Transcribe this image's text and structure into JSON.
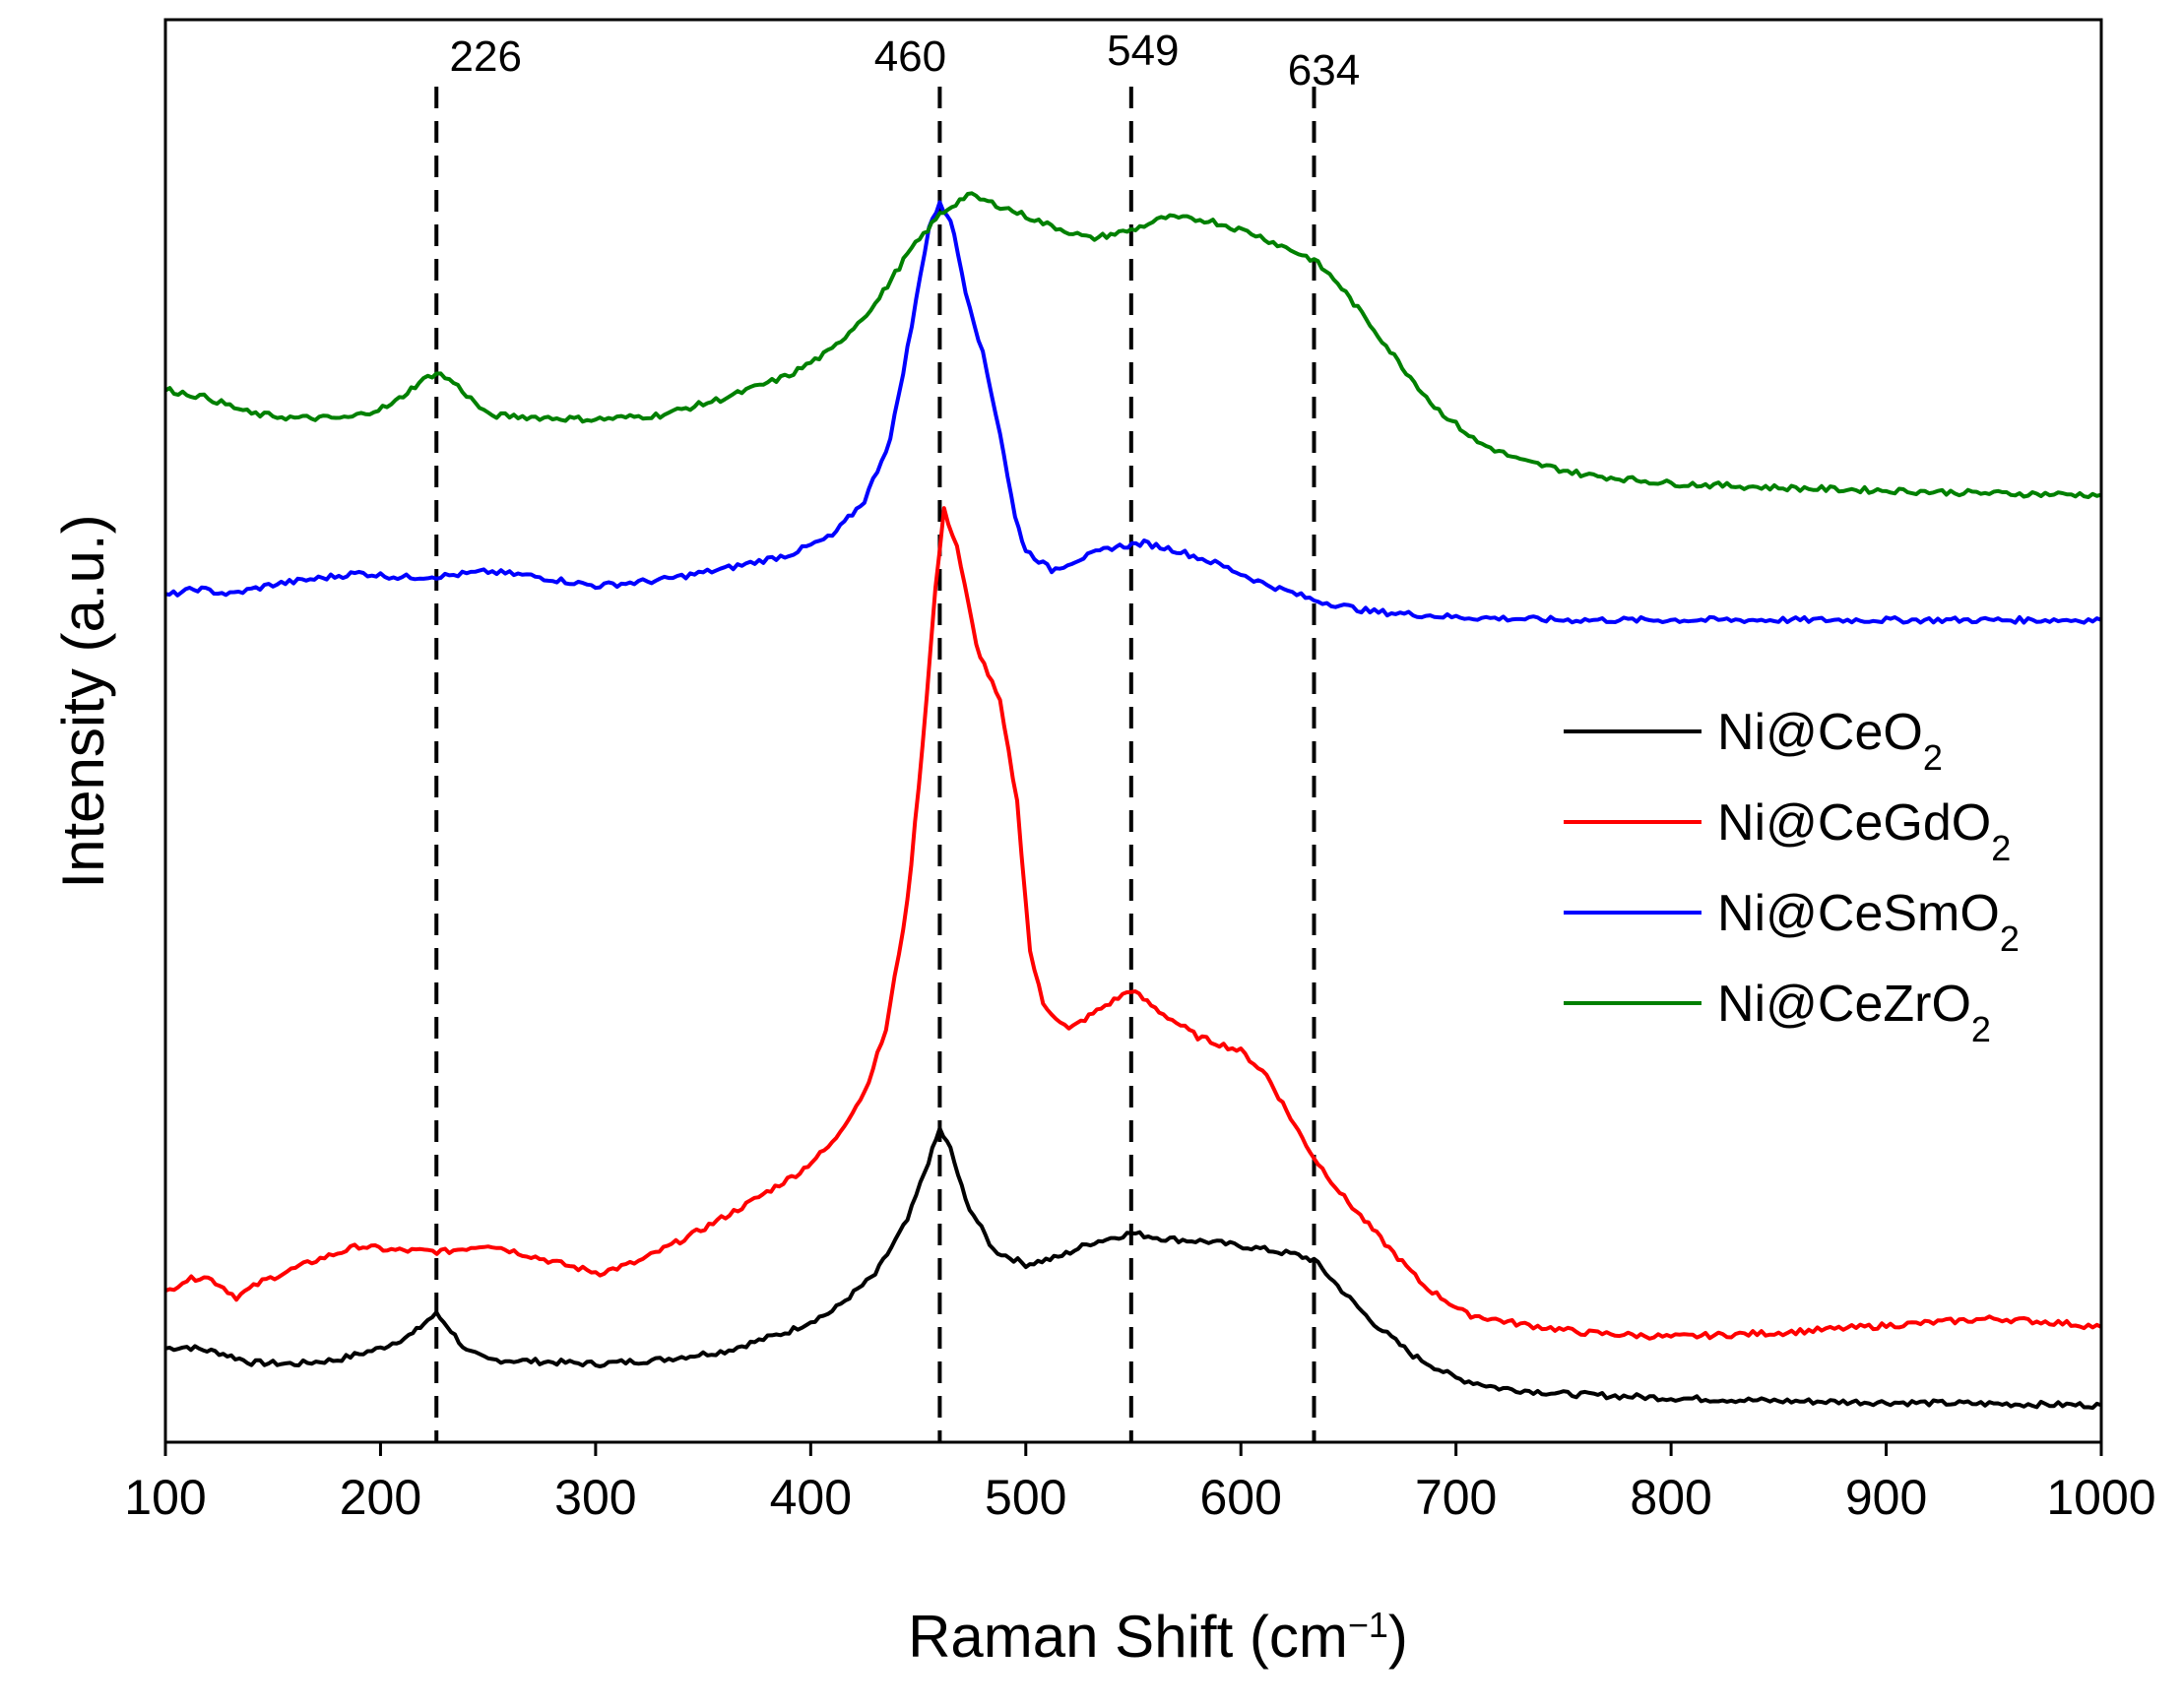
{
  "chart_data": {
    "type": "line",
    "title": "",
    "xlabel": "Raman Shift (cm",
    "xlabel_sup": "−1",
    "xlabel_close": ")",
    "ylabel": "Intensity (a.u.)",
    "xlim": [
      100,
      1000
    ],
    "ylim": [
      0,
      1
    ],
    "x_ticks": [
      100,
      200,
      300,
      400,
      500,
      600,
      700,
      800,
      900,
      1000
    ],
    "x_tick_labels": [
      "100",
      "200",
      "300",
      "400",
      "500",
      "600",
      "700",
      "800",
      "900",
      "1000"
    ],
    "y_ticks_visible": false,
    "grid": false,
    "legend_position": "right",
    "reference_lines": [
      {
        "x": 226,
        "label": "226",
        "style": "dashed"
      },
      {
        "x": 460,
        "label": "460",
        "style": "dashed"
      },
      {
        "x": 549,
        "label": "549",
        "style": "dashed"
      },
      {
        "x": 634,
        "label": "634",
        "style": "dashed"
      }
    ],
    "series": [
      {
        "name": "Ni@CeO",
        "name_sub": "2",
        "color": "#000000",
        "points": [
          [
            100,
            0.066
          ],
          [
            110,
            0.067
          ],
          [
            125,
            0.063
          ],
          [
            140,
            0.056
          ],
          [
            160,
            0.055
          ],
          [
            180,
            0.058
          ],
          [
            200,
            0.066
          ],
          [
            215,
            0.076
          ],
          [
            222,
            0.086
          ],
          [
            226,
            0.09
          ],
          [
            231,
            0.082
          ],
          [
            240,
            0.064
          ],
          [
            250,
            0.058
          ],
          [
            270,
            0.057
          ],
          [
            300,
            0.055
          ],
          [
            330,
            0.058
          ],
          [
            360,
            0.064
          ],
          [
            390,
            0.078
          ],
          [
            410,
            0.092
          ],
          [
            430,
            0.118
          ],
          [
            445,
            0.156
          ],
          [
            453,
            0.19
          ],
          [
            460,
            0.22
          ],
          [
            465,
            0.206
          ],
          [
            472,
            0.17
          ],
          [
            485,
            0.135
          ],
          [
            500,
            0.125
          ],
          [
            515,
            0.13
          ],
          [
            530,
            0.14
          ],
          [
            549,
            0.147
          ],
          [
            565,
            0.143
          ],
          [
            585,
            0.141
          ],
          [
            605,
            0.137
          ],
          [
            625,
            0.132
          ],
          [
            634,
            0.128
          ],
          [
            645,
            0.11
          ],
          [
            660,
            0.086
          ],
          [
            680,
            0.061
          ],
          [
            700,
            0.045
          ],
          [
            720,
            0.038
          ],
          [
            750,
            0.034
          ],
          [
            800,
            0.031
          ],
          [
            850,
            0.029
          ],
          [
            900,
            0.028
          ],
          [
            950,
            0.027
          ],
          [
            1000,
            0.026
          ]
        ]
      },
      {
        "name": "Ni@CeGdO",
        "name_sub": "2",
        "color": "#ff0000",
        "points": [
          [
            100,
            0.105
          ],
          [
            108,
            0.113
          ],
          [
            118,
            0.117
          ],
          [
            125,
            0.111
          ],
          [
            133,
            0.102
          ],
          [
            145,
            0.113
          ],
          [
            170,
            0.128
          ],
          [
            190,
            0.138
          ],
          [
            205,
            0.135
          ],
          [
            230,
            0.134
          ],
          [
            250,
            0.139
          ],
          [
            270,
            0.131
          ],
          [
            290,
            0.123
          ],
          [
            302,
            0.119
          ],
          [
            320,
            0.127
          ],
          [
            345,
            0.146
          ],
          [
            370,
            0.167
          ],
          [
            395,
            0.19
          ],
          [
            410,
            0.21
          ],
          [
            425,
            0.246
          ],
          [
            435,
            0.29
          ],
          [
            445,
            0.38
          ],
          [
            452,
            0.49
          ],
          [
            458,
            0.6
          ],
          [
            462,
            0.655
          ],
          [
            468,
            0.63
          ],
          [
            477,
            0.56
          ],
          [
            488,
            0.52
          ],
          [
            496,
            0.45
          ],
          [
            502,
            0.345
          ],
          [
            508,
            0.308
          ],
          [
            520,
            0.29
          ],
          [
            535,
            0.305
          ],
          [
            549,
            0.318
          ],
          [
            562,
            0.303
          ],
          [
            580,
            0.285
          ],
          [
            600,
            0.275
          ],
          [
            612,
            0.258
          ],
          [
            625,
            0.223
          ],
          [
            634,
            0.2
          ],
          [
            648,
            0.172
          ],
          [
            665,
            0.143
          ],
          [
            685,
            0.11
          ],
          [
            705,
            0.09
          ],
          [
            730,
            0.083
          ],
          [
            760,
            0.077
          ],
          [
            800,
            0.074
          ],
          [
            850,
            0.077
          ],
          [
            900,
            0.082
          ],
          [
            950,
            0.087
          ],
          [
            980,
            0.084
          ],
          [
            1000,
            0.081
          ]
        ]
      },
      {
        "name": "Ni@CeSmO",
        "name_sub": "2",
        "color": "#0000ff",
        "points": [
          [
            100,
            0.595
          ],
          [
            115,
            0.6
          ],
          [
            130,
            0.596
          ],
          [
            150,
            0.603
          ],
          [
            175,
            0.608
          ],
          [
            190,
            0.611
          ],
          [
            210,
            0.608
          ],
          [
            230,
            0.609
          ],
          [
            250,
            0.612
          ],
          [
            270,
            0.609
          ],
          [
            300,
            0.602
          ],
          [
            330,
            0.606
          ],
          [
            360,
            0.614
          ],
          [
            390,
            0.624
          ],
          [
            410,
            0.637
          ],
          [
            425,
            0.662
          ],
          [
            437,
            0.705
          ],
          [
            447,
            0.785
          ],
          [
            455,
            0.855
          ],
          [
            460,
            0.87
          ],
          [
            465,
            0.86
          ],
          [
            472,
            0.81
          ],
          [
            480,
            0.765
          ],
          [
            488,
            0.71
          ],
          [
            495,
            0.65
          ],
          [
            500,
            0.627
          ],
          [
            512,
            0.613
          ],
          [
            525,
            0.621
          ],
          [
            540,
            0.629
          ],
          [
            555,
            0.632
          ],
          [
            570,
            0.627
          ],
          [
            590,
            0.617
          ],
          [
            610,
            0.604
          ],
          [
            634,
            0.592
          ],
          [
            660,
            0.584
          ],
          [
            700,
            0.58
          ],
          [
            750,
            0.578
          ],
          [
            800,
            0.578
          ],
          [
            900,
            0.578
          ],
          [
            1000,
            0.578
          ]
        ]
      },
      {
        "name": "Ni@CeZrO",
        "name_sub": "2",
        "color": "#008000",
        "points": [
          [
            100,
            0.74
          ],
          [
            120,
            0.734
          ],
          [
            140,
            0.723
          ],
          [
            160,
            0.72
          ],
          [
            185,
            0.72
          ],
          [
            205,
            0.729
          ],
          [
            218,
            0.745
          ],
          [
            226,
            0.752
          ],
          [
            234,
            0.745
          ],
          [
            250,
            0.722
          ],
          [
            280,
            0.72
          ],
          [
            300,
            0.719
          ],
          [
            330,
            0.722
          ],
          [
            360,
            0.734
          ],
          [
            390,
            0.75
          ],
          [
            410,
            0.768
          ],
          [
            430,
            0.8
          ],
          [
            445,
            0.835
          ],
          [
            460,
            0.863
          ],
          [
            473,
            0.877
          ],
          [
            490,
            0.868
          ],
          [
            510,
            0.856
          ],
          [
            530,
            0.846
          ],
          [
            549,
            0.852
          ],
          [
            565,
            0.861
          ],
          [
            585,
            0.859
          ],
          [
            605,
            0.85
          ],
          [
            625,
            0.837
          ],
          [
            634,
            0.831
          ],
          [
            645,
            0.815
          ],
          [
            660,
            0.786
          ],
          [
            675,
            0.756
          ],
          [
            690,
            0.728
          ],
          [
            710,
            0.703
          ],
          [
            730,
            0.69
          ],
          [
            760,
            0.68
          ],
          [
            800,
            0.674
          ],
          [
            850,
            0.671
          ],
          [
            900,
            0.669
          ],
          [
            950,
            0.667
          ],
          [
            1000,
            0.666
          ]
        ]
      }
    ]
  }
}
